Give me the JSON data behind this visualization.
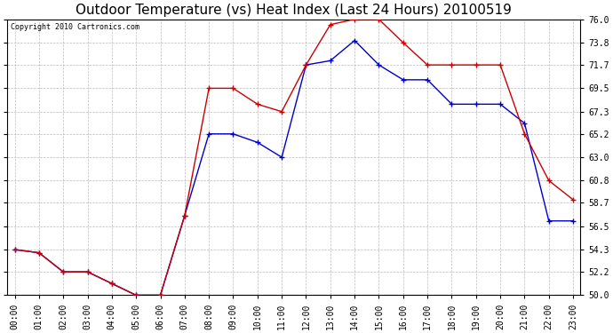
{
  "title": "Outdoor Temperature (vs) Heat Index (Last 24 Hours) 20100519",
  "copyright": "Copyright 2010 Cartronics.com",
  "x_labels": [
    "00:00",
    "01:00",
    "02:00",
    "03:00",
    "04:00",
    "05:00",
    "06:00",
    "07:00",
    "08:00",
    "09:00",
    "10:00",
    "11:00",
    "12:00",
    "13:00",
    "14:00",
    "15:00",
    "16:00",
    "17:00",
    "18:00",
    "19:00",
    "20:00",
    "21:00",
    "22:00",
    "23:00"
  ],
  "red_data": [
    54.3,
    54.0,
    52.2,
    52.2,
    51.1,
    50.0,
    50.0,
    57.5,
    69.5,
    69.5,
    68.0,
    67.3,
    71.7,
    75.5,
    76.0,
    76.0,
    73.8,
    71.7,
    71.7,
    71.7,
    71.7,
    65.2,
    60.8,
    59.0
  ],
  "blue_data": [
    54.3,
    54.0,
    52.2,
    52.2,
    51.1,
    50.0,
    50.0,
    57.5,
    65.2,
    65.2,
    64.4,
    63.0,
    71.7,
    72.1,
    74.0,
    71.7,
    70.3,
    70.3,
    68.0,
    68.0,
    68.0,
    66.2,
    57.0,
    57.0
  ],
  "red_color": "#cc0000",
  "blue_color": "#0000cc",
  "background_color": "#ffffff",
  "plot_bg_color": "#ffffff",
  "grid_color": "#bbbbbb",
  "ylim": [
    50.0,
    76.0
  ],
  "yticks": [
    50.0,
    52.2,
    54.3,
    56.5,
    58.7,
    60.8,
    63.0,
    65.2,
    67.3,
    69.5,
    71.7,
    73.8,
    76.0
  ],
  "title_fontsize": 11,
  "copyright_fontsize": 6,
  "tick_fontsize": 7
}
